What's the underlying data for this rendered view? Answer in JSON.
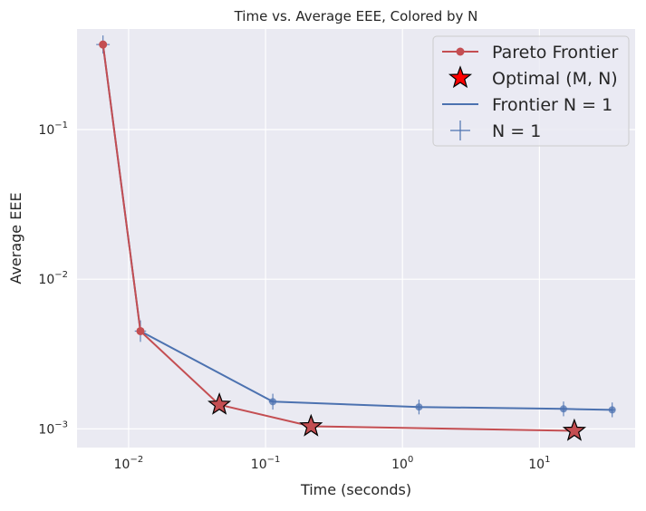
{
  "chart_data": {
    "type": "line",
    "title": "Time vs. Average EEE, Colored by N",
    "xlabel": "Time (seconds)",
    "ylabel": "Average EEE",
    "x_scale": "log",
    "y_scale": "log",
    "xlim": [
      0.0042,
      50
    ],
    "ylim": [
      0.00075,
      0.47
    ],
    "x_ticks": [
      {
        "value": 0.01,
        "base": "10",
        "exp": "−2"
      },
      {
        "value": 0.1,
        "base": "10",
        "exp": "−1"
      },
      {
        "value": 1,
        "base": "10",
        "exp": "0"
      },
      {
        "value": 10,
        "base": "10",
        "exp": "1"
      }
    ],
    "y_ticks": [
      {
        "value": 0.001,
        "base": "10",
        "exp": "−3"
      },
      {
        "value": 0.01,
        "base": "10",
        "exp": "−2"
      },
      {
        "value": 0.1,
        "base": "10",
        "exp": "−1"
      }
    ],
    "grid": true,
    "legend_position": "top-right",
    "series": [
      {
        "name": "Pareto Frontier",
        "kind": "line-marker",
        "color": "#c44e52",
        "x": [
          0.0065,
          0.0122,
          0.046,
          0.215,
          18.0
        ],
        "y": [
          0.37,
          0.0045,
          0.00145,
          0.00104,
          0.00097
        ]
      },
      {
        "name": "Optimal (M, N)",
        "kind": "star",
        "color": "#c44e52",
        "x": [
          0.046,
          0.215,
          18.0
        ],
        "y": [
          0.00145,
          0.00104,
          0.00097
        ]
      },
      {
        "name": "Frontier N = 1",
        "kind": "line",
        "color": "#4c72b0",
        "x": [
          0.0065,
          0.0122,
          0.113,
          1.32,
          15.0,
          34.0
        ],
        "y": [
          0.37,
          0.0045,
          0.00152,
          0.0014,
          0.00136,
          0.00134
        ]
      },
      {
        "name": "N = 1",
        "kind": "errorbar",
        "color": "#4c72b0",
        "x": [
          0.0065,
          0.0122,
          0.113,
          1.32,
          15.0,
          34.0
        ],
        "y": [
          0.37,
          0.0045,
          0.00152,
          0.0014,
          0.00136,
          0.00134
        ],
        "x_err_factor": [
          1.12,
          1.1,
          1.07,
          1.05,
          1.05,
          1.05
        ],
        "y_err_factor": [
          1.15,
          1.18,
          1.13,
          1.12,
          1.12,
          1.12
        ]
      }
    ]
  }
}
